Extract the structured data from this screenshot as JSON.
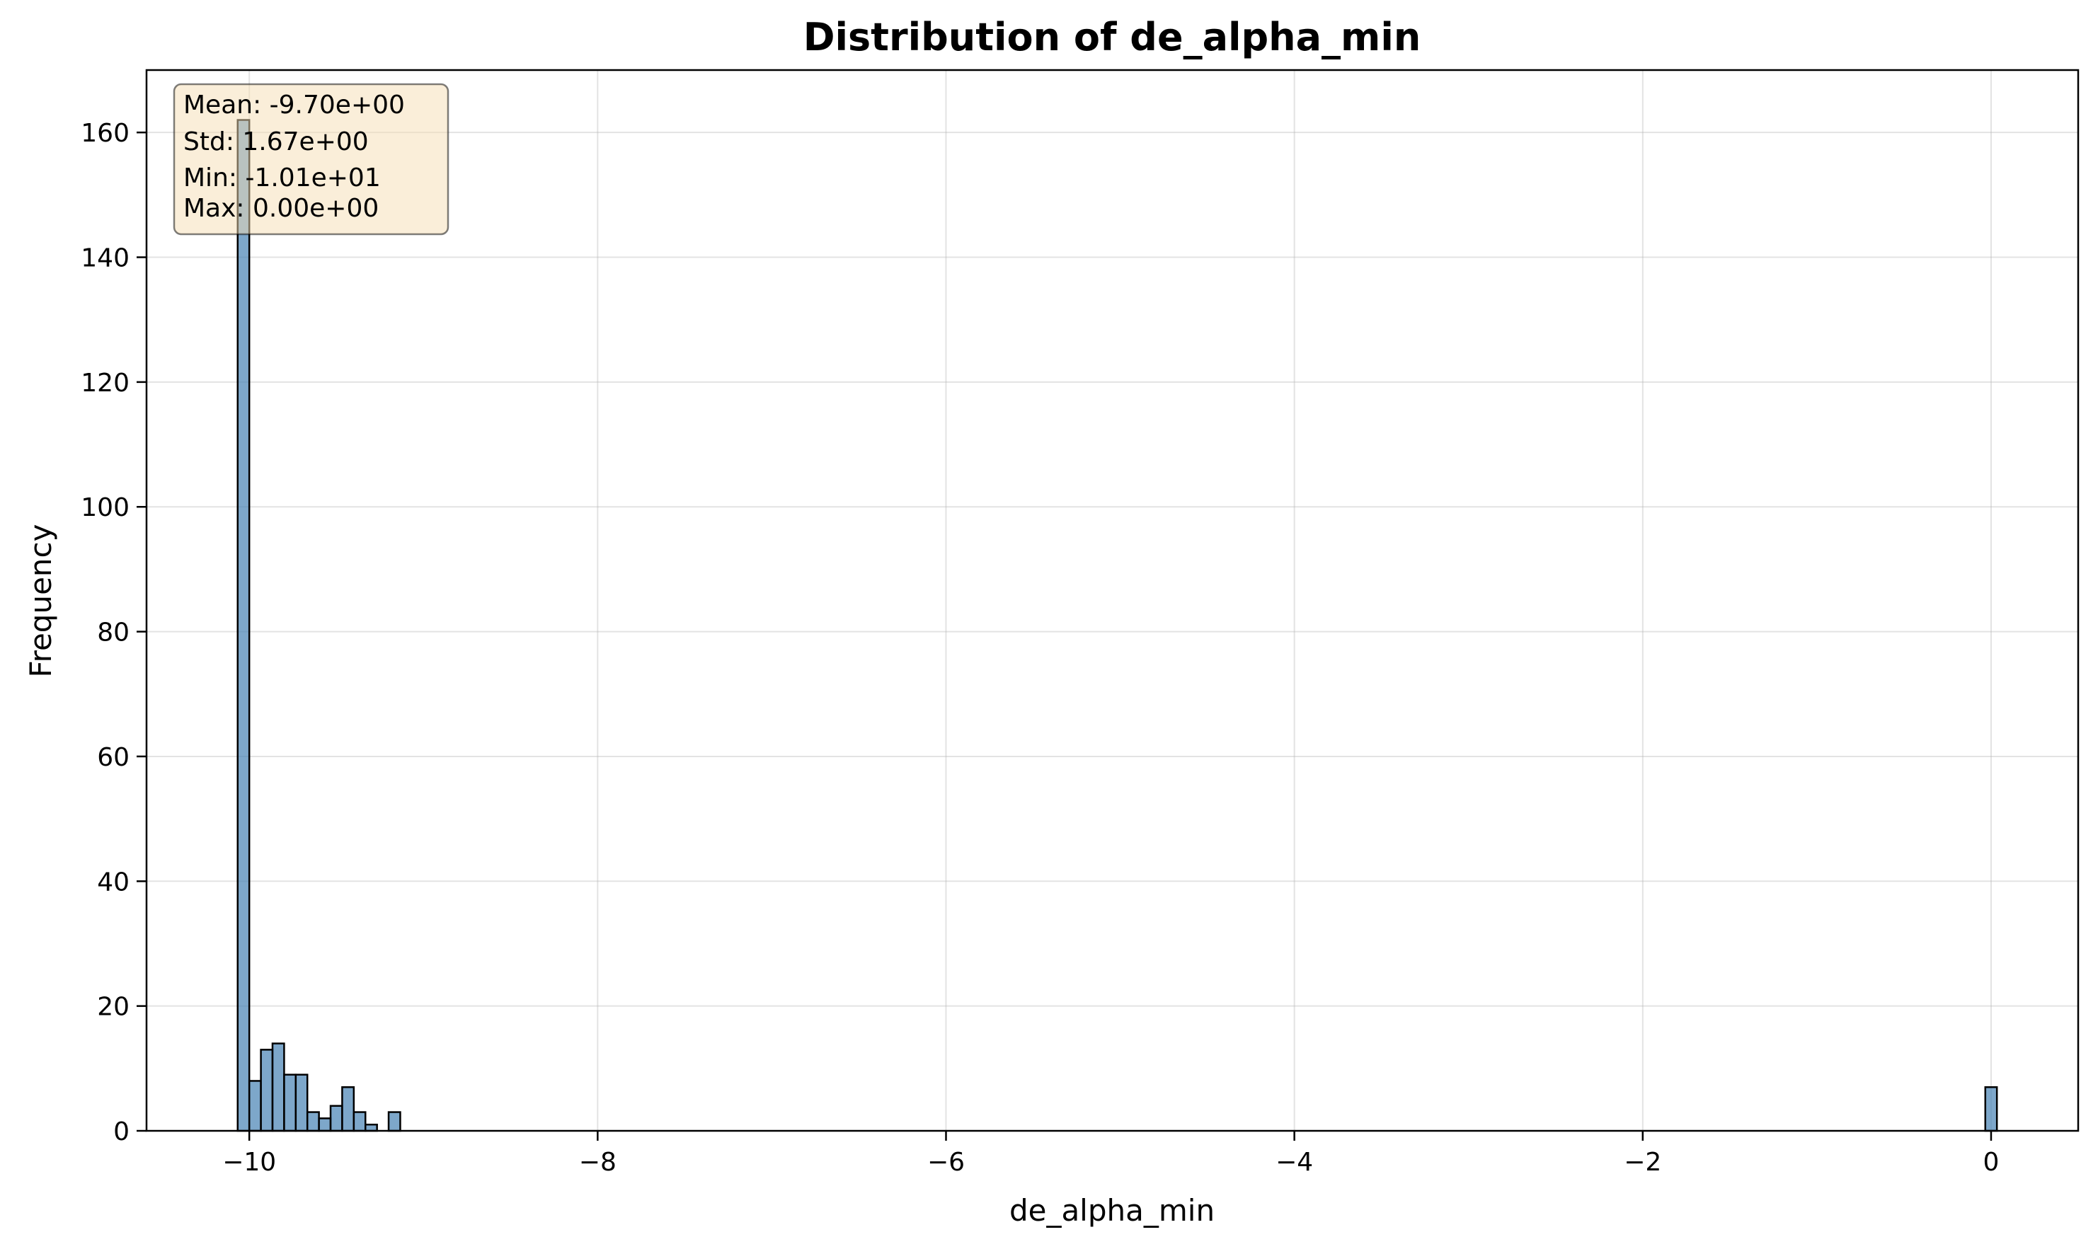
{
  "chart_data": {
    "type": "bar",
    "title": "Distribution of de_alpha_min",
    "xlabel": "de_alpha_min",
    "ylabel": "Frequency",
    "xlim": [
      -10.59,
      0.5
    ],
    "ylim": [
      0,
      170
    ],
    "xticks": [
      -10,
      -8,
      -6,
      -4,
      -2,
      0
    ],
    "xtick_labels": [
      "−10",
      "−8",
      "−6",
      "−4",
      "−2",
      "0"
    ],
    "yticks": [
      0,
      20,
      40,
      60,
      80,
      100,
      120,
      140,
      160
    ],
    "ytick_labels": [
      "0",
      "20",
      "40",
      "60",
      "80",
      "100",
      "120",
      "140",
      "160"
    ],
    "grid": true,
    "bar_color": "#4682b4",
    "bin_width": 0.0667,
    "bins": [
      {
        "x": -10.0667,
        "count": 162
      },
      {
        "x": -10.0,
        "count": 8
      },
      {
        "x": -9.9333,
        "count": 13
      },
      {
        "x": -9.8667,
        "count": 14
      },
      {
        "x": -9.8,
        "count": 9
      },
      {
        "x": -9.7333,
        "count": 9
      },
      {
        "x": -9.6667,
        "count": 3
      },
      {
        "x": -9.6,
        "count": 2
      },
      {
        "x": -9.5333,
        "count": 4
      },
      {
        "x": -9.4667,
        "count": 7
      },
      {
        "x": -9.4,
        "count": 3
      },
      {
        "x": -9.3333,
        "count": 1
      },
      {
        "x": -9.2,
        "count": 3
      },
      {
        "x": -0.0333,
        "count": 7
      }
    ],
    "stats_box": {
      "lines": [
        "Mean: -9.70e+00",
        "Std: 1.67e+00",
        "Min: -1.01e+01",
        "Max: 0.00e+00"
      ],
      "facecolor": "#f5deb3",
      "edgecolor": "#000000"
    }
  }
}
